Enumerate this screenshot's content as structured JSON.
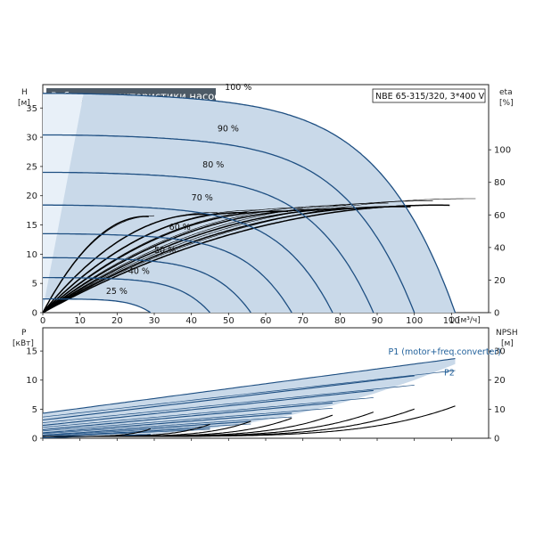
{
  "title": "Рабочие характеристики насоса",
  "model": "NBE 65-315/320, 3*400 V",
  "colors": {
    "curve": "#1e4f82",
    "band": "#c9d9e9",
    "band_light": "#e8f0f8",
    "black": "#000000",
    "title_bg": "#4d5a66",
    "grid": "#cccccc"
  },
  "chart_data": [
    {
      "type": "line",
      "name": "head-chart",
      "axes": {
        "x": {
          "label": "Q [м³/ч]",
          "ticks": [
            0,
            10,
            20,
            30,
            40,
            50,
            60,
            70,
            80,
            90,
            100,
            110
          ],
          "range": [
            0,
            120
          ]
        },
        "y_left": {
          "label_line1": "H",
          "label_line2": "[м]",
          "ticks": [
            0,
            5,
            10,
            15,
            20,
            25,
            30,
            35
          ],
          "range": [
            0,
            39
          ]
        },
        "y_right": {
          "label_line1": "eta",
          "label_line2": "[%]",
          "ticks": [
            0,
            20,
            40,
            60,
            80,
            100
          ],
          "range": [
            0,
            140
          ]
        }
      },
      "speed_labels": [
        {
          "text": "100 %",
          "q": 49,
          "h": 38.1
        },
        {
          "text": "90 %",
          "q": 47,
          "h": 31.0
        },
        {
          "text": "80 %",
          "q": 43,
          "h": 24.8
        },
        {
          "text": "70 %",
          "q": 40,
          "h": 19.2
        },
        {
          "text": "60 %",
          "q": 34,
          "h": 14.2
        },
        {
          "text": "50 %",
          "q": 30,
          "h": 10.2
        },
        {
          "text": "40 %",
          "q": 23,
          "h": 6.6
        },
        {
          "text": "25 %",
          "q": 17,
          "h": 3.2
        }
      ],
      "speed_curves": [
        {
          "speed": 100,
          "h0": 37.5,
          "qmax": 111
        },
        {
          "speed": 90,
          "h0": 30.4,
          "qmax": 100
        },
        {
          "speed": 80,
          "h0": 24.0,
          "qmax": 89
        },
        {
          "speed": 70,
          "h0": 18.4,
          "qmax": 78
        },
        {
          "speed": 60,
          "h0": 13.5,
          "qmax": 67
        },
        {
          "speed": 50,
          "h0": 9.4,
          "qmax": 56
        },
        {
          "speed": 40,
          "h0": 6.0,
          "qmax": 45
        },
        {
          "speed": 25,
          "h0": 2.35,
          "qmax": 29
        }
      ]
    },
    {
      "type": "line",
      "name": "power-chart",
      "axes": {
        "x": {
          "range": [
            0,
            120
          ]
        },
        "y_left": {
          "label_line1": "P",
          "label_line2": "[кВт]",
          "ticks": [
            0,
            5,
            10,
            15
          ],
          "range": [
            0,
            19
          ]
        },
        "y_right": {
          "label_line1": "NPSH",
          "label_line2": "[м]",
          "ticks": [
            0,
            10,
            20,
            30
          ],
          "range": [
            0,
            38
          ]
        }
      },
      "legend": [
        {
          "text": "P1 (motor+freq.converter)",
          "q": 93,
          "p": 14.4
        },
        {
          "text": "P2",
          "q": 108,
          "p": 10.8
        }
      ]
    }
  ]
}
